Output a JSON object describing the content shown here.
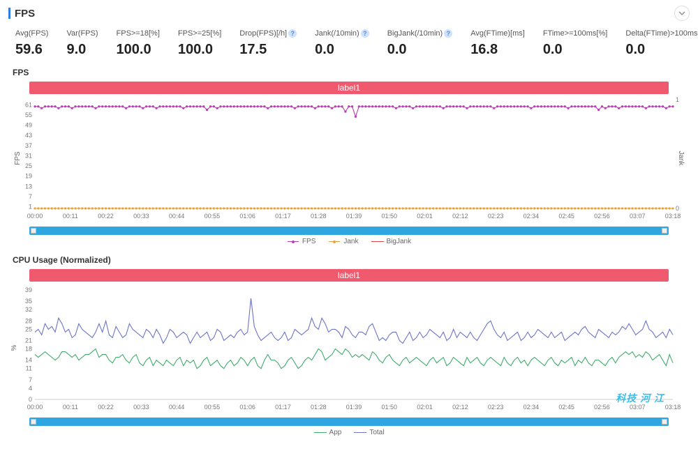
{
  "header": {
    "title": "FPS"
  },
  "metrics": [
    {
      "label": "Avg(FPS)",
      "value": "59.6",
      "help": false
    },
    {
      "label": "Var(FPS)",
      "value": "9.0",
      "help": false
    },
    {
      "label": "FPS>=18[%]",
      "value": "100.0",
      "help": false
    },
    {
      "label": "FPS>=25[%]",
      "value": "100.0",
      "help": false
    },
    {
      "label": "Drop(FPS)[/h]",
      "value": "17.5",
      "help": true
    },
    {
      "label": "Jank(/10min)",
      "value": "0.0",
      "help": true
    },
    {
      "label": "BigJank(/10min)",
      "value": "0.0",
      "help": true
    },
    {
      "label": "Avg(FTime)[ms]",
      "value": "16.8",
      "help": false
    },
    {
      "label": "FTime>=100ms[%]",
      "value": "0.0",
      "help": false
    },
    {
      "label": "Delta(FTime)>100ms[/h]",
      "value": "0.0",
      "help": true
    }
  ],
  "x_ticks": [
    "00:00",
    "00:11",
    "00:22",
    "00:33",
    "00:44",
    "00:55",
    "01:06",
    "01:17",
    "01:28",
    "01:39",
    "01:50",
    "02:01",
    "02:12",
    "02:23",
    "02:34",
    "02:45",
    "02:56",
    "03:07",
    "03:18"
  ],
  "colors": {
    "banner": "#ef5a6f",
    "scrubber": "#2ea7e0",
    "fps_line": "#b83fb1",
    "jank_line": "#e8a23c",
    "bigjank_line": "#d44",
    "app_line": "#3fae6b",
    "total_line": "#6b74c9",
    "grid": "#eeeeee",
    "axis_text": "#777777"
  },
  "fps_chart": {
    "title": "FPS",
    "banner_label": "label1",
    "y_left_label": "FPS",
    "y_right_label": "Jank",
    "y_left_ticks": [
      1,
      7,
      13,
      19,
      25,
      31,
      37,
      43,
      49,
      55,
      61
    ],
    "y_left_min": 0,
    "y_left_max": 64,
    "y_right_ticks": [
      0,
      1
    ],
    "legend": [
      {
        "name": "FPS",
        "color": "#b83fb1",
        "marker": "dot"
      },
      {
        "name": "Jank",
        "color": "#e8a23c",
        "marker": "dot"
      },
      {
        "name": "BigJank",
        "color": "#d44",
        "marker": "line"
      }
    ],
    "fps_series": [
      60,
      60,
      59,
      60,
      60,
      60,
      60,
      59,
      60,
      60,
      60,
      59,
      60,
      60,
      60,
      60,
      60,
      60,
      59,
      60,
      60,
      60,
      60,
      60,
      60,
      60,
      60,
      59,
      60,
      60,
      60,
      60,
      59,
      60,
      60,
      60,
      59,
      60,
      60,
      60,
      60,
      60,
      60,
      60,
      59,
      60,
      60,
      60,
      60,
      60,
      60,
      58,
      60,
      60,
      59,
      60,
      60,
      60,
      60,
      60,
      60,
      60,
      60,
      60,
      60,
      60,
      60,
      60,
      60,
      59,
      60,
      60,
      60,
      60,
      60,
      60,
      60,
      59,
      60,
      60,
      60,
      60,
      60,
      59,
      60,
      60,
      60,
      60,
      59,
      60,
      60,
      60,
      57,
      60,
      60,
      54,
      60,
      60,
      60,
      60,
      60,
      60,
      60,
      60,
      60,
      60,
      60,
      59,
      60,
      60,
      60,
      60,
      59,
      60,
      60,
      60,
      60,
      60,
      60,
      60,
      60,
      59,
      60,
      60,
      60,
      60,
      60,
      60,
      59,
      60,
      60,
      60,
      60,
      60,
      60,
      60,
      59,
      60,
      60,
      60,
      60,
      60,
      60,
      60,
      60,
      60,
      60,
      59,
      60,
      60,
      60,
      60,
      60,
      60,
      60,
      60,
      60,
      60,
      59,
      60,
      60,
      60,
      60,
      60,
      60,
      60,
      60,
      58,
      60,
      59,
      60,
      60,
      60,
      59,
      60,
      60,
      60,
      60,
      60,
      60,
      60,
      59,
      60,
      60,
      60,
      60,
      60,
      59,
      60,
      60
    ],
    "jank_series_constant": 0
  },
  "cpu_chart": {
    "title": "CPU Usage (Normalized)",
    "banner_label": "label1",
    "y_left_label": "%",
    "y_left_ticks": [
      0,
      4,
      7,
      11,
      14,
      18,
      21,
      25,
      28,
      32,
      35,
      39
    ],
    "y_left_min": 0,
    "y_left_max": 40,
    "legend": [
      {
        "name": "App",
        "color": "#3fae6b",
        "marker": "line"
      },
      {
        "name": "Total",
        "color": "#6b74c9",
        "marker": "line"
      }
    ],
    "total_series": [
      24,
      25,
      23,
      27,
      25,
      26,
      24,
      29,
      27,
      24,
      25,
      22,
      23,
      27,
      25,
      24,
      23,
      22,
      24,
      27,
      24,
      28,
      23,
      22,
      26,
      24,
      22,
      23,
      27,
      25,
      24,
      23,
      22,
      25,
      24,
      22,
      25,
      23,
      20,
      22,
      25,
      24,
      22,
      23,
      24,
      23,
      20,
      22,
      24,
      22,
      23,
      24,
      21,
      22,
      25,
      24,
      21,
      22,
      23,
      22,
      24,
      25,
      23,
      24,
      36,
      26,
      23,
      21,
      22,
      23,
      24,
      22,
      21,
      22,
      24,
      21,
      22,
      25,
      24,
      23,
      24,
      25,
      29,
      26,
      25,
      29,
      27,
      24,
      25,
      25,
      24,
      22,
      26,
      25,
      23,
      22,
      24,
      24,
      23,
      26,
      27,
      24,
      21,
      22,
      21,
      23,
      24,
      24,
      21,
      20,
      22,
      24,
      21,
      22,
      24,
      22,
      23,
      25,
      24,
      23,
      22,
      24,
      21,
      22,
      25,
      22,
      24,
      23,
      22,
      24,
      22,
      21,
      23,
      25,
      27,
      28,
      25,
      23,
      22,
      24,
      21,
      22,
      23,
      24,
      21,
      22,
      24,
      22,
      23,
      25,
      24,
      23,
      22,
      24,
      22,
      23,
      24,
      21,
      22,
      23,
      24,
      23,
      25,
      26,
      24,
      23,
      22,
      25,
      24,
      23,
      22,
      24,
      23,
      24,
      26,
      25,
      27,
      25,
      23,
      24,
      25,
      28,
      25,
      24,
      22,
      23,
      24,
      22,
      25,
      23
    ],
    "app_series": [
      16,
      15,
      16,
      17,
      16,
      15,
      14,
      15,
      17,
      17,
      16,
      15,
      16,
      14,
      15,
      16,
      16,
      17,
      18,
      15,
      16,
      16,
      14,
      13,
      15,
      15,
      16,
      14,
      13,
      15,
      16,
      13,
      12,
      14,
      15,
      12,
      14,
      13,
      12,
      14,
      13,
      12,
      14,
      15,
      12,
      14,
      13,
      14,
      11,
      12,
      14,
      15,
      12,
      13,
      14,
      12,
      11,
      13,
      14,
      12,
      13,
      15,
      14,
      12,
      14,
      15,
      12,
      11,
      14,
      16,
      14,
      14,
      13,
      11,
      12,
      14,
      15,
      13,
      11,
      12,
      14,
      15,
      14,
      16,
      18,
      17,
      14,
      15,
      16,
      18,
      17,
      16,
      18,
      17,
      15,
      16,
      15,
      16,
      15,
      14,
      17,
      16,
      14,
      13,
      15,
      16,
      14,
      13,
      12,
      14,
      15,
      13,
      14,
      15,
      14,
      13,
      12,
      14,
      15,
      13,
      14,
      15,
      12,
      13,
      15,
      14,
      13,
      12,
      15,
      13,
      14,
      15,
      13,
      12,
      14,
      15,
      14,
      13,
      12,
      15,
      13,
      12,
      14,
      15,
      13,
      14,
      12,
      14,
      15,
      14,
      13,
      12,
      14,
      15,
      13,
      12,
      14,
      13,
      14,
      15,
      12,
      14,
      13,
      15,
      13,
      12,
      14,
      14,
      13,
      12,
      14,
      15,
      13,
      15,
      16,
      17,
      16,
      17,
      15,
      16,
      15,
      17,
      16,
      14,
      15,
      16,
      14,
      12,
      16,
      13
    ]
  },
  "watermark": "科技 河 江"
}
